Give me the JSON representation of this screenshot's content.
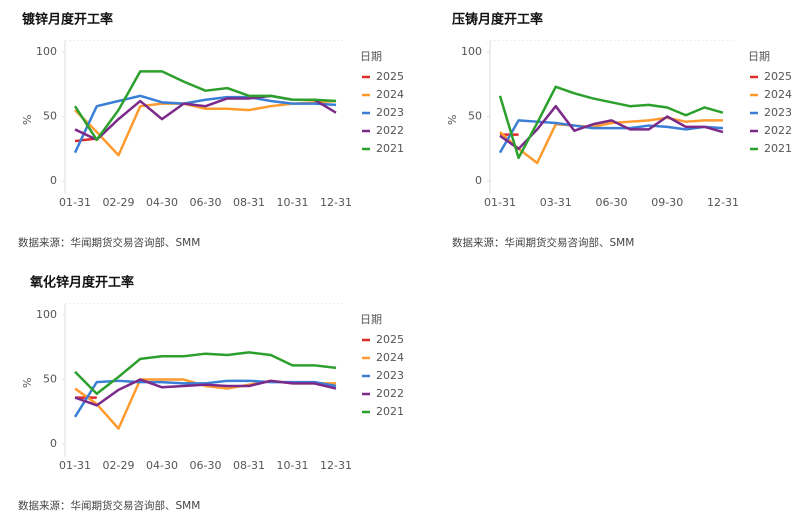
{
  "chart_data": [
    {
      "type": "line",
      "title": "镀锌月度开工率",
      "source": "数据来源：华闻期货交易咨询部、SMM",
      "y_label": "%",
      "legend_title": "日期",
      "categories": [
        "01-31",
        null,
        "02-29",
        null,
        "04-30",
        null,
        "06-30",
        null,
        "08-31",
        null,
        "10-31",
        null,
        "12-31"
      ],
      "ylim": [
        -10,
        105
      ],
      "yticks": [
        0,
        50,
        100
      ],
      "series": [
        {
          "name": "2025",
          "color": "#e02a2a",
          "values": [
            31,
            33,
            null,
            null,
            null,
            null,
            null,
            null,
            null,
            null,
            null,
            null,
            null
          ]
        },
        {
          "name": "2024",
          "color": "#ff9a2e",
          "values": [
            55,
            38,
            20,
            58,
            60,
            60,
            56,
            56,
            55,
            58,
            60,
            61,
            62
          ]
        },
        {
          "name": "2023",
          "color": "#3a7fd5",
          "values": [
            22,
            58,
            62,
            66,
            61,
            60,
            63,
            65,
            65,
            62,
            60,
            60,
            59
          ]
        },
        {
          "name": "2022",
          "color": "#7b2a8a",
          "values": [
            40,
            32,
            48,
            62,
            48,
            60,
            58,
            64,
            64,
            66,
            63,
            63,
            53
          ]
        },
        {
          "name": "2021",
          "color": "#2ca02c",
          "values": [
            58,
            32,
            55,
            85,
            85,
            77,
            70,
            72,
            66,
            66,
            63,
            63,
            62
          ]
        }
      ]
    },
    {
      "type": "line",
      "title": "压铸月度开工率",
      "source": "数据来源：华闻期货交易咨询部、SMM",
      "y_label": "%",
      "legend_title": "日期",
      "categories": [
        "01-31",
        null,
        null,
        "03-31",
        null,
        null,
        "06-30",
        null,
        null,
        "09-30",
        null,
        null,
        "12-31"
      ],
      "ylim": [
        -10,
        105
      ],
      "yticks": [
        0,
        50,
        100
      ],
      "series": [
        {
          "name": "2025",
          "color": "#e02a2a",
          "values": [
            36,
            36,
            null,
            null,
            null,
            null,
            null,
            null,
            null,
            null,
            null,
            null,
            null
          ]
        },
        {
          "name": "2024",
          "color": "#ff9a2e",
          "values": [
            38,
            25,
            14,
            44,
            43,
            42,
            45,
            46,
            47,
            49,
            46,
            47,
            47
          ]
        },
        {
          "name": "2023",
          "color": "#3a7fd5",
          "values": [
            22,
            47,
            46,
            45,
            43,
            41,
            41,
            41,
            43,
            42,
            40,
            42,
            41
          ]
        },
        {
          "name": "2022",
          "color": "#7b2a8a",
          "values": [
            35,
            25,
            40,
            58,
            39,
            44,
            47,
            40,
            40,
            50,
            42,
            42,
            38
          ]
        },
        {
          "name": "2021",
          "color": "#2ca02c",
          "values": [
            66,
            18,
            45,
            73,
            68,
            64,
            61,
            58,
            59,
            57,
            51,
            57,
            53
          ]
        }
      ]
    },
    {
      "type": "line",
      "title": "氧化锌月度开工率",
      "source": "数据来源：华闻期货交易咨询部、SMM",
      "y_label": "%",
      "legend_title": "日期",
      "categories": [
        "01-31",
        null,
        "02-29",
        null,
        "04-30",
        null,
        "06-30",
        null,
        "08-31",
        null,
        "10-31",
        null,
        "12-31"
      ],
      "ylim": [
        -10,
        105
      ],
      "yticks": [
        0,
        50,
        100
      ],
      "series": [
        {
          "name": "2025",
          "color": "#e02a2a",
          "values": [
            36,
            36,
            null,
            null,
            null,
            null,
            null,
            null,
            null,
            null,
            null,
            null,
            null
          ]
        },
        {
          "name": "2024",
          "color": "#ff9a2e",
          "values": [
            43,
            31,
            12,
            50,
            50,
            50,
            45,
            43,
            46,
            49,
            47,
            47,
            47
          ]
        },
        {
          "name": "2023",
          "color": "#3a7fd5",
          "values": [
            21,
            48,
            49,
            48,
            48,
            47,
            47,
            49,
            49,
            48,
            48,
            48,
            45
          ]
        },
        {
          "name": "2022",
          "color": "#7b2a8a",
          "values": [
            36,
            30,
            42,
            50,
            44,
            45,
            46,
            45,
            45,
            49,
            47,
            47,
            43
          ]
        },
        {
          "name": "2021",
          "color": "#2ca02c",
          "values": [
            56,
            39,
            52,
            66,
            68,
            68,
            70,
            69,
            71,
            69,
            61,
            61,
            59
          ]
        }
      ]
    }
  ]
}
